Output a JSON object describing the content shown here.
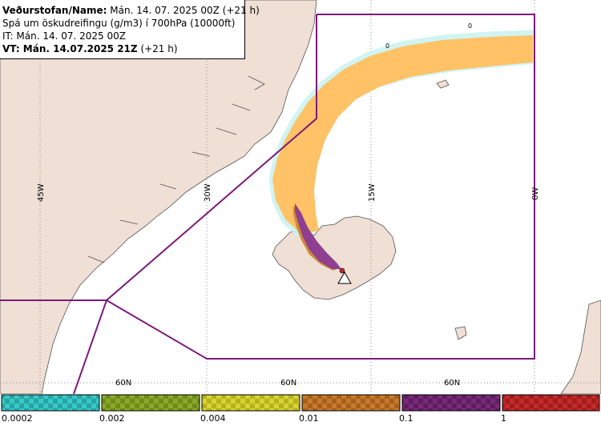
{
  "header": {
    "line1_label": "Veðurstofan/Name:",
    "line1_value": "Mán. 14. 07. 2025 00Z (+21 h)",
    "line2": "Spá um öskudreifingu (g/m3) í 700hPa (10000ft)",
    "line3": "IT: Mán. 14. 07. 2025 00Z",
    "line4_label": "VT: Mán. 14.07.2025 21Z",
    "line4_value": "(+21 h)"
  },
  "map": {
    "lon_labels": [
      "45W",
      "30W",
      "15W",
      "0W"
    ],
    "lat_labels": [
      "60N",
      "60N",
      "60N"
    ],
    "contour_zero_labels": [
      "0",
      "0"
    ],
    "colors": {
      "sea": "#ffffff",
      "land": "#efdfd4",
      "coast": "#555555",
      "grid": "#8a8a8a",
      "boundary": "#7b1a7b",
      "ash_low": "#ffc266",
      "ash_mid": "#d08a3a",
      "ash_high": "#8f3f8f",
      "fringe": "#c9f2f0"
    },
    "volcano_icon": "triangle-volcano-icon"
  },
  "legend": {
    "labels": [
      "0.0002",
      "0.002",
      "0.004",
      "0.01",
      "0.1",
      "1"
    ],
    "colors": [
      "#35c9c9",
      "#8aaa27",
      "#d8d430",
      "#c77a2a",
      "#7a2a7a",
      "#c42a2a"
    ]
  }
}
